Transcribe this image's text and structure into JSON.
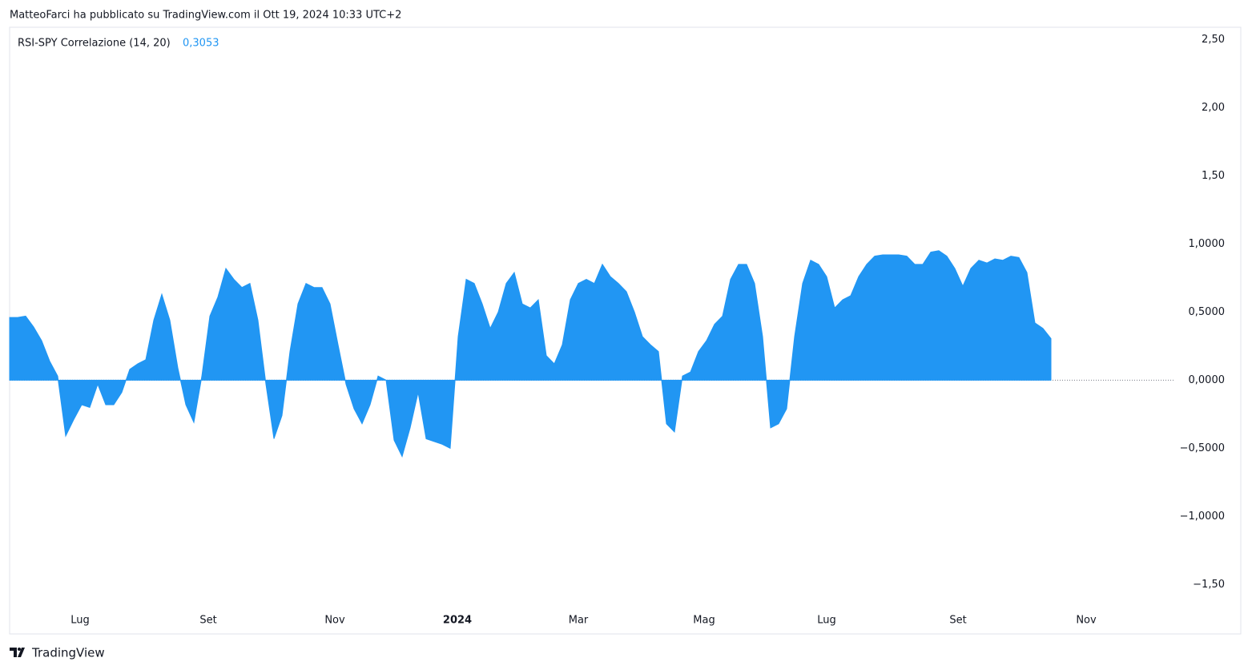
{
  "caption": "MatteoFarci ha pubblicato su TradingView.com il Ott 19, 2024 10:33 UTC+2",
  "footer": "TradingView",
  "chart_data": {
    "type": "area",
    "indicator_value": "0,3053",
    "series": [
      {
        "name": "RSI-SPY Correlazione (14, 20)",
        "color": "#2196f3",
        "values": [
          0.46,
          0.46,
          0.47,
          0.39,
          0.29,
          0.14,
          0.03,
          -0.41,
          -0.29,
          -0.18,
          -0.2,
          -0.03,
          -0.18,
          -0.18,
          -0.09,
          0.08,
          0.12,
          0.15,
          0.44,
          0.63,
          0.44,
          0.09,
          -0.18,
          -0.31,
          0.03,
          0.47,
          0.61,
          0.82,
          0.74,
          0.68,
          0.71,
          0.44,
          -0.03,
          -0.43,
          -0.26,
          0.21,
          0.56,
          0.71,
          0.68,
          0.68,
          0.56,
          0.26,
          -0.03,
          -0.21,
          -0.32,
          -0.18,
          0.03,
          0.0,
          -0.44,
          -0.56,
          -0.35,
          -0.09,
          -0.43,
          -0.45,
          -0.47,
          -0.5,
          0.32,
          0.74,
          0.71,
          0.56,
          0.38,
          0.5,
          0.71,
          0.79,
          0.56,
          0.53,
          0.59,
          0.18,
          0.12,
          0.26,
          0.59,
          0.71,
          0.74,
          0.71,
          0.85,
          0.76,
          0.71,
          0.65,
          0.5,
          0.32,
          0.26,
          0.21,
          -0.32,
          -0.38,
          0.03,
          0.06,
          0.21,
          0.29,
          0.41,
          0.47,
          0.74,
          0.85,
          0.85,
          0.71,
          0.32,
          -0.35,
          -0.32,
          -0.21,
          0.32,
          0.71,
          0.88,
          0.85,
          0.76,
          0.53,
          0.59,
          0.62,
          0.76,
          0.85,
          0.91,
          0.92,
          0.92,
          0.92,
          0.91,
          0.85,
          0.85,
          0.94,
          0.95,
          0.91,
          0.82,
          0.69,
          0.82,
          0.88,
          0.86,
          0.89,
          0.88,
          0.91,
          0.9,
          0.79,
          0.42,
          0.38,
          0.3053
        ]
      }
    ],
    "xlim": [
      0,
      145.5
    ],
    "xticks": [
      {
        "value": 8.8,
        "label": "Lug"
      },
      {
        "value": 24.8,
        "label": "Set"
      },
      {
        "value": 40.6,
        "label": "Nov"
      },
      {
        "value": 55.9,
        "label": "2024"
      },
      {
        "value": 71,
        "label": "Mar"
      },
      {
        "value": 86.7,
        "label": "Mag"
      },
      {
        "value": 102,
        "label": "Lug"
      },
      {
        "value": 118.4,
        "label": "Set"
      },
      {
        "value": 134.4,
        "label": "Nov"
      }
    ],
    "ylim": [
      -1.68,
      2.59
    ],
    "yticks": [
      {
        "value": 2.5,
        "label": "2,50"
      },
      {
        "value": 2,
        "label": "2,00"
      },
      {
        "value": 1.5,
        "label": "1,50"
      },
      {
        "value": 1,
        "label": "1,0000"
      },
      {
        "value": 0.5,
        "label": "0,5000"
      },
      {
        "value": 0,
        "label": "0,0000"
      },
      {
        "value": -0.5,
        "label": "−0,5000"
      },
      {
        "value": -1,
        "label": "−1,0000"
      },
      {
        "value": -1.5,
        "label": "−1,50"
      }
    ]
  }
}
